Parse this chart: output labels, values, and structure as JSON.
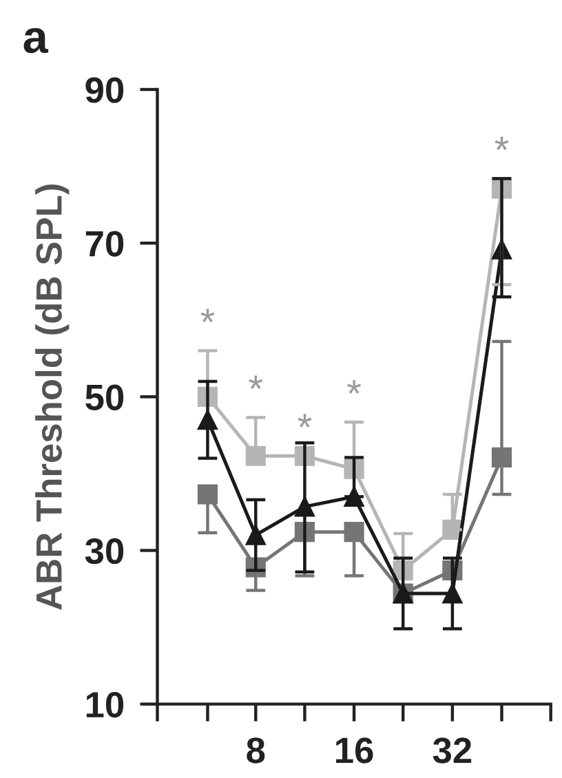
{
  "chart_data": {
    "type": "line",
    "ylabel": "ABR Threshold (dB SPL)",
    "log": "x",
    "x": [
      5.7,
      8,
      11.3,
      16,
      22.6,
      32,
      45.3
    ],
    "xlim": [
      4,
      64
    ],
    "xticks": [
      {
        "value": 4,
        "label": null
      },
      {
        "value": 5.7,
        "label": null
      },
      {
        "value": 8,
        "label": "8"
      },
      {
        "value": 11.3,
        "label": null
      },
      {
        "value": 16,
        "label": "16"
      },
      {
        "value": 22.6,
        "label": null
      },
      {
        "value": 32,
        "label": "32"
      },
      {
        "value": 45.3,
        "label": null
      },
      {
        "value": 64,
        "label": null
      }
    ],
    "ylim": [
      10,
      90
    ],
    "yticks": [
      10,
      30,
      50,
      70,
      90
    ],
    "grid": false,
    "series": [
      {
        "color": "#b5b5b5",
        "marker": "square",
        "values": [
          50,
          42.3,
          42.3,
          40.6,
          27.4,
          32.7,
          77.1
        ],
        "errors": [
          [
            50,
            56
          ],
          [
            42.3,
            47.3
          ],
          [
            42.3,
            42.3
          ],
          [
            40.6,
            46.7
          ],
          [
            27.4,
            32.2
          ],
          [
            32.7,
            37.3
          ],
          [
            64.6,
            78.4
          ]
        ]
      },
      {
        "color": "#757575",
        "marker": "square",
        "values": [
          37.3,
          27.8,
          32.4,
          32.4,
          24.4,
          27.4,
          42.1
        ],
        "errors": [
          [
            32.3,
            37.3
          ],
          [
            24.8,
            27.8
          ],
          [
            26.7,
            32.4
          ],
          [
            26.7,
            32.4
          ],
          null,
          null,
          [
            37.3,
            57.2
          ]
        ]
      },
      {
        "color": "#1a1a1a",
        "marker": "triangle",
        "values": [
          47,
          32,
          35.7,
          37,
          24.4,
          24.4,
          69.2
        ],
        "errors": [
          [
            42,
            52
          ],
          [
            27.4,
            36.6
          ],
          [
            27.2,
            44
          ],
          [
            37,
            42.1
          ],
          [
            19.8,
            29
          ],
          [
            19.8,
            29
          ],
          [
            63,
            78.4
          ]
        ]
      }
    ],
    "annotations": [
      "a",
      {
        "text": "*",
        "x": 5.7,
        "y": 56
      },
      {
        "text": "*",
        "x": 8,
        "y": 47.3
      },
      {
        "text": "*",
        "x": 11.3,
        "y": 42.3
      },
      {
        "text": "*",
        "x": 16,
        "y": 46.7
      },
      {
        "text": "*",
        "x": 45.3,
        "y": 78.4
      }
    ]
  }
}
